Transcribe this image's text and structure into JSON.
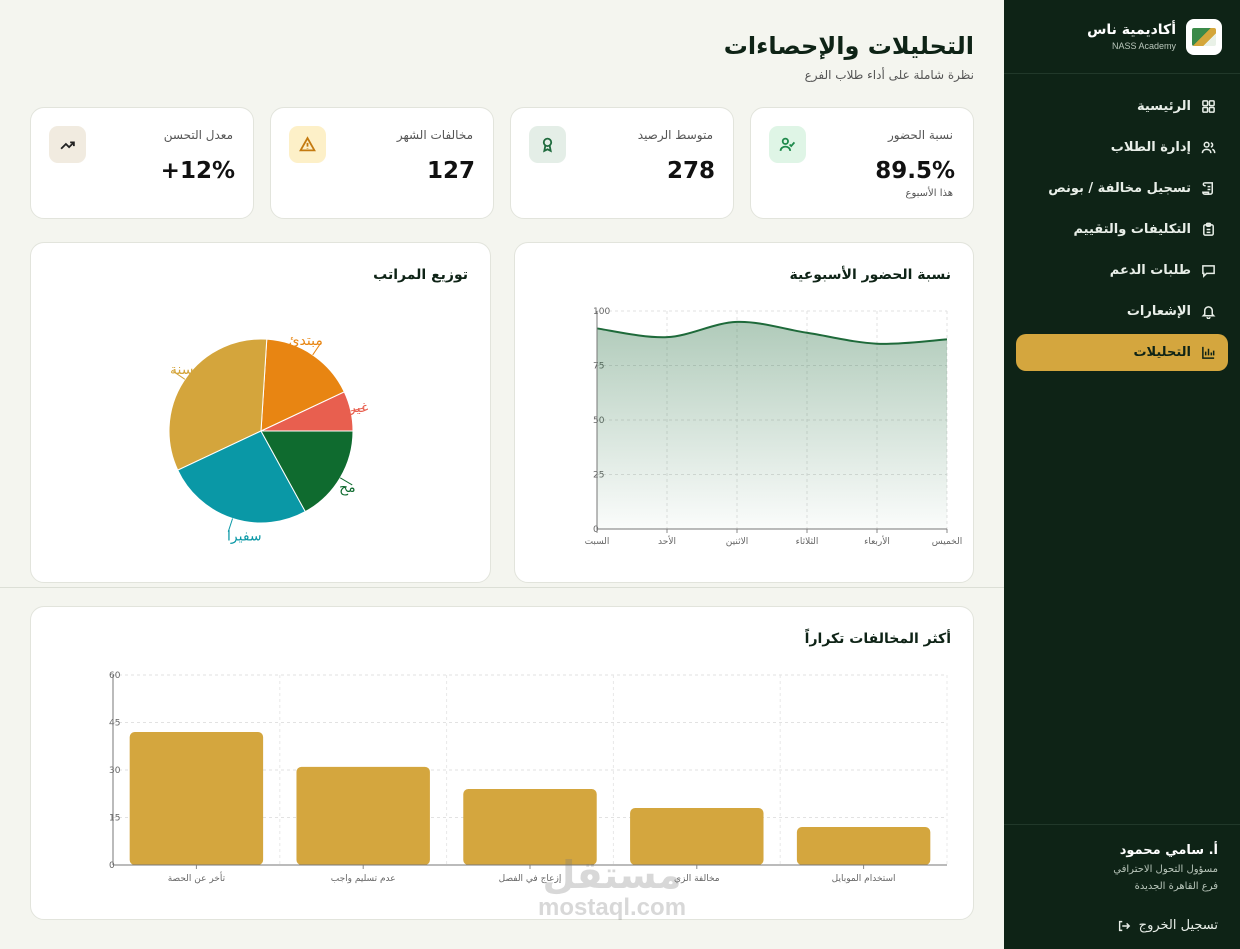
{
  "brand": {
    "name": "أكاديمية ناس",
    "sub": "NASS Academy"
  },
  "nav": [
    {
      "label": "الرئيسية",
      "icon": "grid-icon"
    },
    {
      "label": "إدارة الطلاب",
      "icon": "users-icon"
    },
    {
      "label": "تسجيل مخالفة / بونص",
      "icon": "scroll-icon"
    },
    {
      "label": "التكليفات والتقييم",
      "icon": "clipboard-icon"
    },
    {
      "label": "طلبات الدعم",
      "icon": "message-icon"
    },
    {
      "label": "الإشعارات",
      "icon": "bell-icon"
    },
    {
      "label": "التحليلات",
      "icon": "bar-chart-icon",
      "active": true
    }
  ],
  "user": {
    "name": "أ. سامي محمود",
    "role": "مسؤول التحول الاحترافي",
    "branch": "فرع القاهرة الجديدة"
  },
  "logout_label": "تسجيل الخروج",
  "page": {
    "title": "التحليلات والإحصاءات",
    "subtitle": "نظرة شاملة على أداء طلاب الفرع"
  },
  "stats": [
    {
      "label": "نسبة الحضور",
      "value": "89.5%",
      "note": "هذا الأسبوع",
      "icon": "user-check-icon",
      "icon_color": "#1f8a4c",
      "icon_bg": "#dff5e6"
    },
    {
      "label": "متوسط الرصيد",
      "value": "278",
      "icon": "award-icon",
      "icon_color": "#1f6b3e",
      "icon_bg": "#e4eee7"
    },
    {
      "label": "مخالفات الشهر",
      "value": "127",
      "icon": "warning-icon",
      "icon_color": "#c47a10",
      "icon_bg": "#fdf0c8"
    },
    {
      "label": "معدل التحسن",
      "value": "+12%",
      "icon": "trend-up-icon",
      "icon_color": "#222",
      "icon_bg": "#f1ebe0"
    }
  ],
  "colors": {
    "accent": "#d4a63e",
    "dark": "#0e2316",
    "green": "#1e6a3a"
  },
  "attendance_chart": {
    "title": "نسبة الحضور الأسبوعية",
    "chart_data": {
      "type": "area",
      "categories": [
        "السبت",
        "الأحد",
        "الاثنين",
        "الثلاثاء",
        "الأربعاء",
        "الخميس"
      ],
      "values": [
        92,
        88,
        95,
        90,
        85,
        87
      ],
      "ylim": [
        0,
        100
      ],
      "yticks": [
        0,
        25,
        50,
        75,
        100
      ],
      "grid": true
    }
  },
  "ranks_chart": {
    "title": "توزيع المراتب",
    "chart_data": {
      "type": "pie",
      "slices": [
        {
          "label": "غير",
          "value": 7,
          "color": "#e85f4f"
        },
        {
          "label": "مبتدئ",
          "value": 17,
          "color": "#e88512"
        },
        {
          "label": "سنة",
          "value": 33,
          "color": "#d4a53c"
        },
        {
          "label": "سفيرا",
          "value": 26,
          "color": "#0a98a6"
        },
        {
          "label": "مح",
          "value": 17,
          "color": "#0f6b2f"
        }
      ]
    }
  },
  "violations_chart": {
    "title": "أكثر المخالفات تكراراً",
    "chart_data": {
      "type": "bar",
      "categories": [
        "تأخر عن الحصة",
        "عدم تسليم واجب",
        "إزعاج في الفصل",
        "مخالفة الزي",
        "استخدام الموبايل"
      ],
      "values": [
        42,
        31,
        24,
        18,
        12
      ],
      "ylim": [
        0,
        60
      ],
      "yticks": [
        0,
        15,
        30,
        45,
        60
      ],
      "color": "#d4a63e",
      "grid": true
    }
  },
  "watermark": {
    "arabic": "مستقل",
    "latin": "mostaql.com"
  }
}
